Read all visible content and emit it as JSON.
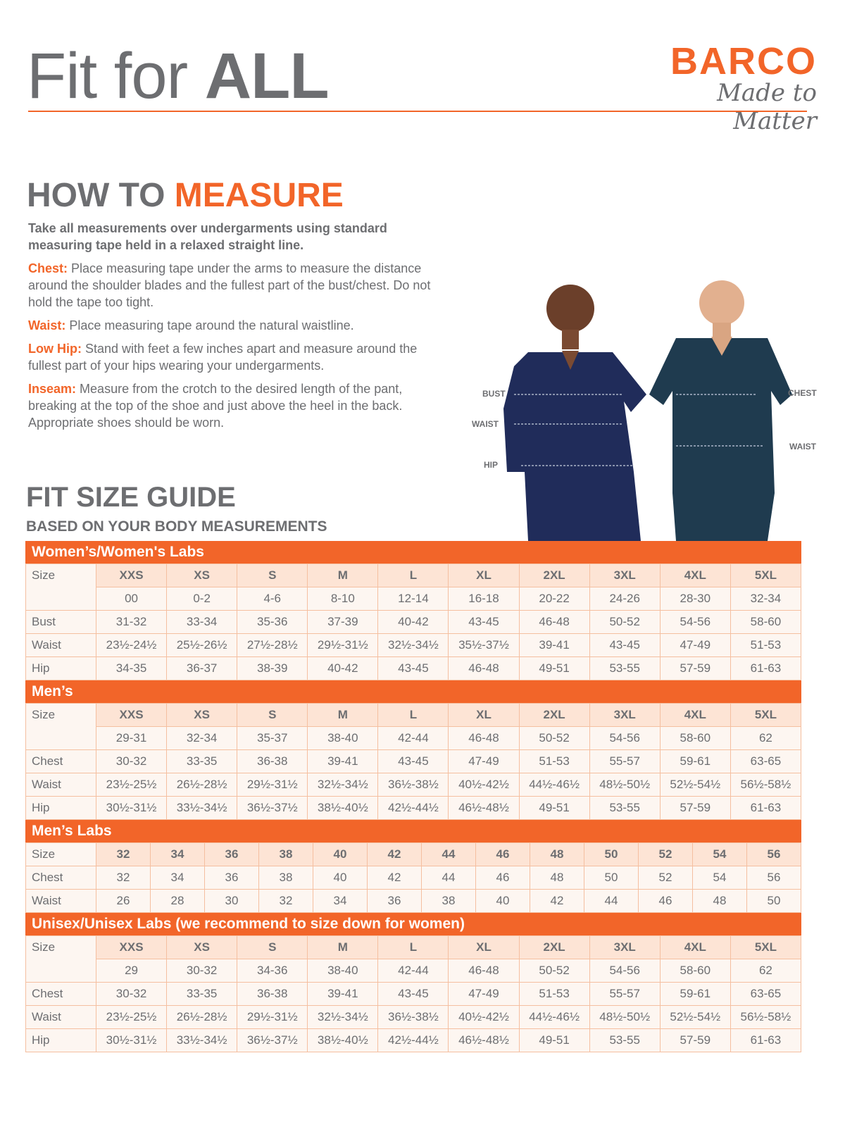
{
  "header": {
    "title_light": "Fit for ",
    "title_bold": "ALL",
    "brand": "BARCO",
    "tagline": "Made to Matter",
    "accent": "#f26529"
  },
  "measure": {
    "title_gray": "HOW TO ",
    "title_orange": "MEASURE",
    "lead": "Take all measurements over undergarments using standard measuring tape held in a relaxed straight line.",
    "items": [
      {
        "key": "Chest:",
        "text": "Place measuring tape under the arms to measure the distance around the shoulder blades and the fullest part of the bust/chest. Do not hold the tape too tight."
      },
      {
        "key": "Waist:",
        "text": "Place measuring tape around the natural waistline."
      },
      {
        "key": "Low Hip:",
        "text": "Stand with feet a few inches apart and measure around the fullest part of your hips wearing your undergarments."
      },
      {
        "key": "Inseam:",
        "text": "Measure from the crotch to the desired length of the pant, breaking at the top of the shoe and just above the heel in the back. Appropriate shoes should be worn."
      }
    ]
  },
  "photo_labels": {
    "bust": "BUST",
    "waist_w": "WAIST",
    "hip": "HIP",
    "chest": "CHEST",
    "waist_m": "WAIST"
  },
  "guide": {
    "title": "FIT SIZE GUIDE",
    "subtitle": "BASED ON YOUR BODY MEASUREMENTS"
  },
  "tables": [
    {
      "title": "Women’s/Women's Labs",
      "size_label": "Size",
      "sizes": [
        "XXS",
        "XS",
        "S",
        "M",
        "L",
        "XL",
        "2XL",
        "3XL",
        "4XL",
        "5XL"
      ],
      "sub": [
        "00",
        "0-2",
        "4-6",
        "8-10",
        "12-14",
        "16-18",
        "20-22",
        "24-26",
        "28-30",
        "32-34"
      ],
      "rows": [
        {
          "label": "Bust",
          "values": [
            "31-32",
            "33-34",
            "35-36",
            "37-39",
            "40-42",
            "43-45",
            "46-48",
            "50-52",
            "54-56",
            "58-60"
          ]
        },
        {
          "label": "Waist",
          "values": [
            "23½-24½",
            "25½-26½",
            "27½-28½",
            "29½-31½",
            "32½-34½",
            "35½-37½",
            "39-41",
            "43-45",
            "47-49",
            "51-53"
          ]
        },
        {
          "label": "Hip",
          "values": [
            "34-35",
            "36-37",
            "38-39",
            "40-42",
            "43-45",
            "46-48",
            "49-51",
            "53-55",
            "57-59",
            "61-63"
          ]
        }
      ]
    },
    {
      "title": "Men’s",
      "size_label": "Size",
      "sizes": [
        "XXS",
        "XS",
        "S",
        "M",
        "L",
        "XL",
        "2XL",
        "3XL",
        "4XL",
        "5XL"
      ],
      "sub": [
        "29-31",
        "32-34",
        "35-37",
        "38-40",
        "42-44",
        "46-48",
        "50-52",
        "54-56",
        "58-60",
        "62"
      ],
      "rows": [
        {
          "label": "Chest",
          "values": [
            "30-32",
            "33-35",
            "36-38",
            "39-41",
            "43-45",
            "47-49",
            "51-53",
            "55-57",
            "59-61",
            "63-65"
          ]
        },
        {
          "label": "Waist",
          "values": [
            "23½-25½",
            "26½-28½",
            "29½-31½",
            "32½-34½",
            "36½-38½",
            "40½-42½",
            "44½-46½",
            "48½-50½",
            "52½-54½",
            "56½-58½"
          ]
        },
        {
          "label": "Hip",
          "values": [
            "30½-31½",
            "33½-34½",
            "36½-37½",
            "38½-40½",
            "42½-44½",
            "46½-48½",
            "49-51",
            "53-55",
            "57-59",
            "61-63"
          ]
        }
      ]
    },
    {
      "title": "Men’s Labs",
      "size_label": "Size",
      "sizes": [
        "32",
        "34",
        "36",
        "38",
        "40",
        "42",
        "44",
        "46",
        "48",
        "50",
        "52",
        "54",
        "56"
      ],
      "rows": [
        {
          "label": "Chest",
          "values": [
            "32",
            "34",
            "36",
            "38",
            "40",
            "42",
            "44",
            "46",
            "48",
            "50",
            "52",
            "54",
            "56"
          ]
        },
        {
          "label": "Waist",
          "values": [
            "26",
            "28",
            "30",
            "32",
            "34",
            "36",
            "38",
            "40",
            "42",
            "44",
            "46",
            "48",
            "50"
          ]
        }
      ]
    },
    {
      "title": "Unisex/Unisex Labs (we recommend to size down for women)",
      "size_label": "Size",
      "sizes": [
        "XXS",
        "XS",
        "S",
        "M",
        "L",
        "XL",
        "2XL",
        "3XL",
        "4XL",
        "5XL"
      ],
      "sub": [
        "29",
        "30-32",
        "34-36",
        "38-40",
        "42-44",
        "46-48",
        "50-52",
        "54-56",
        "58-60",
        "62"
      ],
      "rows": [
        {
          "label": "Chest",
          "values": [
            "30-32",
            "33-35",
            "36-38",
            "39-41",
            "43-45",
            "47-49",
            "51-53",
            "55-57",
            "59-61",
            "63-65"
          ]
        },
        {
          "label": "Waist",
          "values": [
            "23½-25½",
            "26½-28½",
            "29½-31½",
            "32½-34½",
            "36½-38½",
            "40½-42½",
            "44½-46½",
            "48½-50½",
            "52½-54½",
            "56½-58½"
          ]
        },
        {
          "label": "Hip",
          "values": [
            "30½-31½",
            "33½-34½",
            "36½-37½",
            "38½-40½",
            "42½-44½",
            "46½-48½",
            "49-51",
            "53-55",
            "57-59",
            "61-63"
          ]
        }
      ]
    }
  ]
}
